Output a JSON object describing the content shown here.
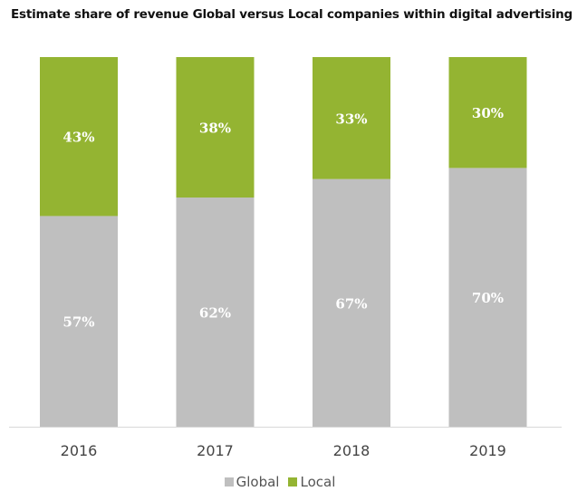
{
  "chart_data": {
    "type": "bar",
    "stacked": true,
    "title": "Estimate share of revenue Global versus Local companies within digital advertising",
    "xlabel": "",
    "ylabel": "",
    "ylim": [
      0,
      100
    ],
    "grid": false,
    "categories": [
      "2016",
      "2017",
      "2018",
      "2019"
    ],
    "series": [
      {
        "name": "Global",
        "color": "#BFBFBF",
        "values": [
          57,
          62,
          67,
          70
        ],
        "labels": [
          "57%",
          "62%",
          "67%",
          "70%"
        ]
      },
      {
        "name": "Local",
        "color": "#94B432",
        "values": [
          43,
          38,
          33,
          30
        ],
        "labels": [
          "43%",
          "38%",
          "33%",
          "30%"
        ]
      }
    ],
    "legend": {
      "placement": "bottom",
      "entries": [
        "Global",
        "Local"
      ]
    }
  }
}
